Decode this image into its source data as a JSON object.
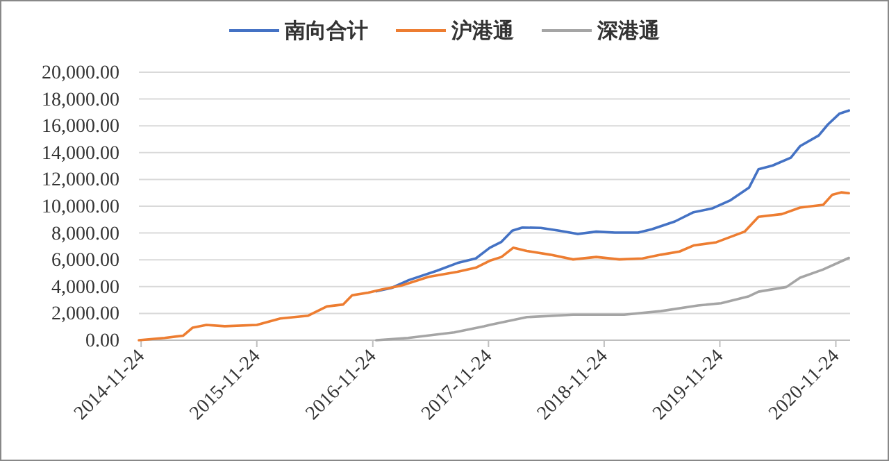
{
  "chart_data": {
    "type": "line",
    "xlim": [
      "2014-11-17",
      "2021-01-08"
    ],
    "xticks": [
      {
        "value": "2014-11-24",
        "label": "2014-11-24"
      },
      {
        "value": "2015-11-24",
        "label": "2015-11-24"
      },
      {
        "value": "2016-11-24",
        "label": "2016-11-24"
      },
      {
        "value": "2017-11-24",
        "label": "2017-11-24"
      },
      {
        "value": "2018-11-24",
        "label": "2018-11-24"
      },
      {
        "value": "2019-11-24",
        "label": "2019-11-24"
      },
      {
        "value": "2020-11-24",
        "label": "2020-11-24"
      }
    ],
    "ylim": [
      0,
      20000
    ],
    "yticks": [
      {
        "value": 0,
        "label": "0.00"
      },
      {
        "value": 2000,
        "label": "2,000.00"
      },
      {
        "value": 4000,
        "label": "4,000.00"
      },
      {
        "value": 6000,
        "label": "6,000.00"
      },
      {
        "value": 8000,
        "label": "8,000.00"
      },
      {
        "value": 10000,
        "label": "10,000.00"
      },
      {
        "value": 12000,
        "label": "12,000.00"
      },
      {
        "value": 14000,
        "label": "14,000.00"
      },
      {
        "value": 16000,
        "label": "16,000.00"
      },
      {
        "value": 18000,
        "label": "18,000.00"
      },
      {
        "value": 20000,
        "label": "20,000.00"
      }
    ],
    "grid": "y",
    "legend": "top",
    "series": [
      {
        "name": "南向合计",
        "color": "#4472c4",
        "x": [
          "2016-12-05",
          "2017-01-22",
          "2017-03-18",
          "2017-06-14",
          "2017-08-18",
          "2017-10-15",
          "2017-11-28",
          "2018-01-04",
          "2018-02-07",
          "2018-03-11",
          "2018-05-08",
          "2018-07-05",
          "2018-09-02",
          "2018-10-30",
          "2018-12-28",
          "2019-03-11",
          "2019-04-23",
          "2019-07-05",
          "2019-09-02",
          "2019-10-30",
          "2019-12-28",
          "2020-02-24",
          "2020-03-25",
          "2020-05-08",
          "2020-07-05",
          "2020-08-03",
          "2020-10-01",
          "2020-10-30",
          "2020-12-05",
          "2021-01-04"
        ],
        "values": [
          3650,
          3900,
          4490,
          5180,
          5760,
          6100,
          6900,
          7340,
          8170,
          8410,
          8380,
          8170,
          7930,
          8100,
          8030,
          8030,
          8280,
          8860,
          9550,
          9830,
          10450,
          11380,
          12760,
          13030,
          13620,
          14480,
          15280,
          16100,
          16900,
          17140
        ]
      },
      {
        "name": "沪港通",
        "color": "#ed7d31",
        "x": [
          "2014-11-17",
          "2015-02-06",
          "2015-04-06",
          "2015-05-05",
          "2015-06-18",
          "2015-08-15",
          "2015-11-24",
          "2016-02-06",
          "2016-05-04",
          "2016-07-02",
          "2016-08-22",
          "2016-09-20",
          "2016-11-10",
          "2016-12-24",
          "2017-02-21",
          "2017-05-19",
          "2017-08-18",
          "2017-10-15",
          "2017-11-28",
          "2018-01-04",
          "2018-02-10",
          "2018-03-25",
          "2018-06-07",
          "2018-08-18",
          "2018-10-30",
          "2019-01-11",
          "2019-03-25",
          "2019-05-22",
          "2019-07-20",
          "2019-09-02",
          "2019-11-13",
          "2020-02-10",
          "2020-03-25",
          "2020-06-07",
          "2020-08-03",
          "2020-10-15",
          "2020-11-13",
          "2020-12-12",
          "2021-01-04"
        ],
        "values": [
          0,
          170,
          340,
          930,
          1140,
          1040,
          1140,
          1620,
          1830,
          2520,
          2660,
          3350,
          3550,
          3800,
          4070,
          4730,
          5100,
          5410,
          5930,
          6210,
          6900,
          6660,
          6380,
          6030,
          6210,
          6030,
          6100,
          6380,
          6620,
          7070,
          7310,
          8100,
          9210,
          9410,
          9900,
          10100,
          10860,
          11030,
          10970
        ]
      },
      {
        "name": "深港通",
        "color": "#a5a5a5",
        "x": [
          "2016-12-05",
          "2017-03-15",
          "2017-08-08",
          "2017-11-10",
          "2017-11-28",
          "2018-03-25",
          "2018-08-18",
          "2019-01-26",
          "2019-05-22",
          "2019-09-16",
          "2019-11-28",
          "2020-02-24",
          "2020-03-25",
          "2020-06-21",
          "2020-08-03",
          "2020-10-15",
          "2021-01-04"
        ],
        "values": [
          0,
          170,
          585,
          1040,
          1140,
          1720,
          1900,
          1900,
          2170,
          2590,
          2760,
          3280,
          3620,
          3970,
          4660,
          5280,
          6140
        ]
      }
    ]
  }
}
